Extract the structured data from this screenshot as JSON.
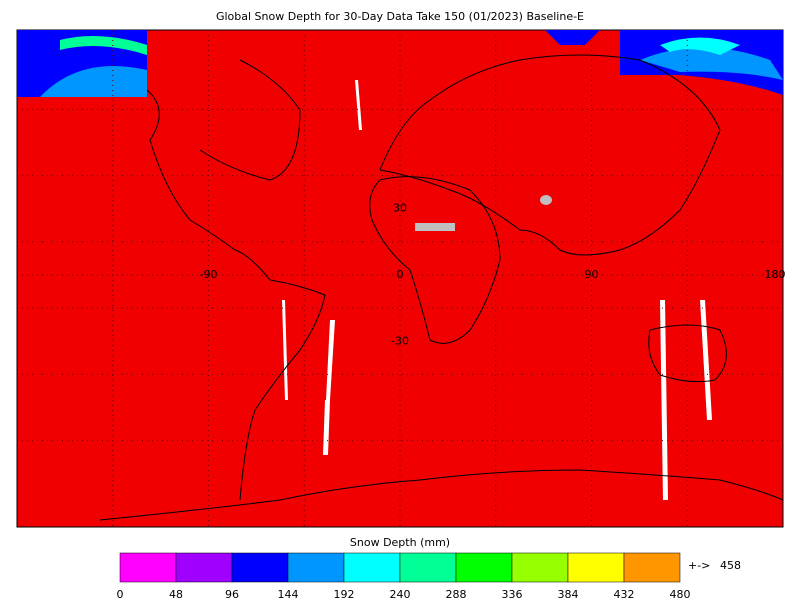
{
  "title": "Global Snow Depth for 30-Day Data Take 150 (01/2023) Baseline-E",
  "map": {
    "background_color": "#f00000",
    "lat_labels": [
      30,
      -30
    ],
    "lon_labels": [
      -90,
      0,
      90,
      180
    ]
  },
  "colorbar": {
    "label": "Snow Depth (mm)",
    "colors": [
      "#ff00ff",
      "#a000ff",
      "#0000ff",
      "#0096ff",
      "#00ffff",
      "#00ff96",
      "#00ff00",
      "#96ff00",
      "#ffff00",
      "#ff9600"
    ],
    "ticks": [
      0,
      48,
      96,
      144,
      192,
      240,
      288,
      336,
      384,
      432,
      480
    ],
    "overflow": {
      "arrow": "+->",
      "value": 458,
      "color": "#ff9600"
    }
  }
}
